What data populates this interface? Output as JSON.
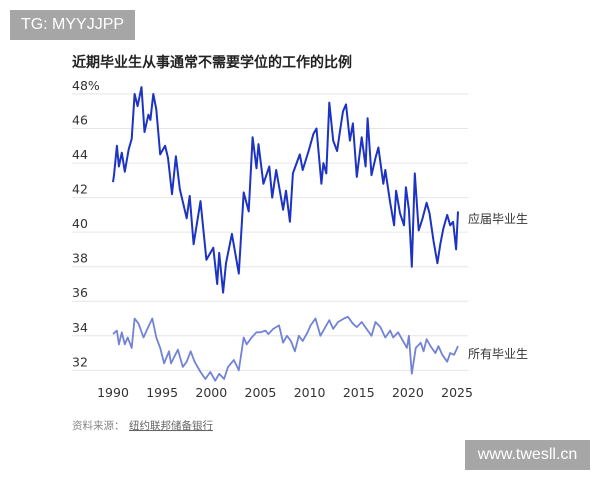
{
  "watermarks": {
    "top_left": "TG: MYYJJPP",
    "bottom_right": "www.twesll.cn"
  },
  "source": {
    "label": "资料来源：",
    "link": "纽约联邦储备银行"
  },
  "colors": {
    "recent": "#1c33c4",
    "all": "#7283d6",
    "grid": "#e6e6e6",
    "text": "#333333"
  },
  "chart_data": {
    "type": "line",
    "title": "近期毕业生从事通常不需要学位的工作的比例",
    "ylim": [
      31,
      48.5
    ],
    "yticks": [
      48,
      46,
      44,
      42,
      40,
      38,
      36,
      34,
      32
    ],
    "ytick_labels": [
      "48%",
      "46",
      "44",
      "42",
      "40",
      "38",
      "36",
      "34",
      "32"
    ],
    "xlim": [
      1990,
      2025
    ],
    "xticks": [
      1990,
      1995,
      2000,
      2005,
      2010,
      2015,
      2020,
      2025
    ],
    "xtick_labels": [
      "1990",
      "1995",
      "2000",
      "2005",
      "2010",
      "2015",
      "2020",
      "2025"
    ],
    "grid": true,
    "series": [
      {
        "name": "应届毕业生",
        "x": [
          1990.0,
          1990.1,
          1990.4,
          1990.6,
          1990.9,
          1991.2,
          1991.6,
          1991.9,
          1992.2,
          1992.5,
          1992.9,
          1993.2,
          1993.6,
          1993.8,
          1994.1,
          1994.4,
          1994.8,
          1995.3,
          1995.6,
          1996.0,
          1996.4,
          1996.8,
          1997.5,
          1997.8,
          1998.2,
          1998.9,
          1999.5,
          2000.2,
          2000.6,
          2000.8,
          2001.2,
          2001.5,
          2002.1,
          2002.8,
          2003.3,
          2003.8,
          2004.2,
          2004.6,
          2004.8,
          2005.3,
          2005.9,
          2006.2,
          2006.6,
          2007.3,
          2007.6,
          2008.0,
          2008.3,
          2009.0,
          2009.3,
          2009.9,
          2010.4,
          2010.7,
          2011.2,
          2011.4,
          2011.7,
          2012.0,
          2012.4,
          2012.8,
          2013.1,
          2013.4,
          2013.7,
          2014.1,
          2014.4,
          2014.8,
          2015.3,
          2015.7,
          2015.9,
          2016.3,
          2016.7,
          2017.0,
          2017.5,
          2017.7,
          2018.2,
          2018.6,
          2018.8,
          2019.2,
          2019.6,
          2019.8,
          2020.1,
          2020.4,
          2020.7,
          2021.1,
          2021.5,
          2021.9,
          2022.2,
          2022.6,
          2023.0,
          2023.3,
          2023.6,
          2024.0,
          2024.3,
          2024.6,
          2024.9,
          2025.1
        ],
        "values": [
          42.9,
          43.3,
          45.0,
          43.8,
          44.6,
          43.5,
          44.8,
          45.4,
          48.0,
          47.3,
          48.4,
          45.8,
          46.8,
          46.5,
          48.0,
          47.1,
          44.5,
          45.0,
          44.3,
          42.2,
          44.4,
          42.5,
          40.8,
          42.1,
          39.3,
          41.8,
          38.4,
          39.1,
          37.0,
          38.8,
          36.5,
          38.2,
          39.9,
          37.6,
          42.3,
          41.2,
          45.5,
          43.7,
          45.1,
          42.8,
          43.8,
          42.0,
          43.6,
          41.3,
          42.4,
          40.6,
          43.4,
          44.5,
          43.6,
          44.7,
          45.7,
          46.0,
          42.8,
          44.0,
          43.4,
          47.5,
          45.3,
          44.7,
          45.9,
          47.0,
          47.4,
          45.3,
          46.3,
          43.2,
          45.5,
          43.8,
          46.6,
          43.3,
          44.3,
          44.9,
          42.8,
          43.6,
          41.7,
          40.4,
          42.4,
          41.1,
          40.4,
          42.6,
          41.3,
          38.0,
          43.4,
          40.1,
          40.8,
          41.7,
          41.1,
          39.5,
          38.2,
          39.3,
          40.2,
          41.0,
          40.4,
          40.6,
          39.0,
          41.2
        ]
      },
      {
        "name": "所有毕业生",
        "x": [
          1990.0,
          1990.4,
          1990.6,
          1990.9,
          1991.2,
          1991.5,
          1991.9,
          1992.2,
          1992.6,
          1993.1,
          1993.5,
          1994.0,
          1994.4,
          1994.8,
          1995.2,
          1995.7,
          1995.9,
          1996.6,
          1997.1,
          1997.5,
          1997.9,
          1998.3,
          1998.9,
          1999.4,
          1999.9,
          2000.4,
          2000.8,
          2001.3,
          2001.7,
          2002.3,
          2002.8,
          2003.3,
          2003.6,
          2004.1,
          2004.6,
          2005.0,
          2005.5,
          2005.8,
          2006.3,
          2006.9,
          2007.3,
          2007.7,
          2008.1,
          2008.5,
          2008.9,
          2009.3,
          2009.8,
          2010.1,
          2010.6,
          2011.1,
          2011.5,
          2012.0,
          2012.4,
          2012.9,
          2013.5,
          2013.9,
          2014.4,
          2014.8,
          2015.3,
          2015.8,
          2016.3,
          2016.7,
          2017.2,
          2017.7,
          2018.2,
          2018.5,
          2019.0,
          2019.5,
          2019.9,
          2020.1,
          2020.4,
          2020.8,
          2021.3,
          2021.6,
          2021.9,
          2022.3,
          2022.8,
          2023.1,
          2023.5,
          2024.0,
          2024.3,
          2024.7,
          2025.1
        ],
        "values": [
          34.1,
          34.3,
          33.5,
          34.2,
          33.5,
          33.9,
          33.3,
          35.0,
          34.7,
          33.9,
          34.4,
          35.0,
          33.9,
          33.3,
          32.4,
          33.1,
          32.4,
          33.2,
          32.2,
          32.5,
          33.1,
          32.5,
          31.9,
          31.5,
          31.9,
          31.4,
          31.8,
          31.5,
          32.2,
          32.6,
          32.0,
          33.9,
          33.5,
          33.9,
          34.2,
          34.2,
          34.3,
          34.1,
          34.4,
          34.6,
          33.6,
          34.0,
          33.7,
          33.1,
          34.0,
          33.7,
          34.2,
          34.6,
          35.0,
          34.0,
          34.4,
          34.9,
          34.4,
          34.8,
          35.0,
          35.1,
          34.7,
          34.5,
          34.8,
          34.4,
          34.0,
          34.8,
          34.5,
          33.9,
          34.3,
          33.9,
          34.2,
          33.7,
          33.3,
          34.0,
          31.8,
          33.3,
          33.6,
          33.1,
          33.8,
          33.4,
          33.0,
          33.4,
          32.9,
          32.5,
          33.0,
          32.9,
          33.4
        ]
      }
    ]
  }
}
